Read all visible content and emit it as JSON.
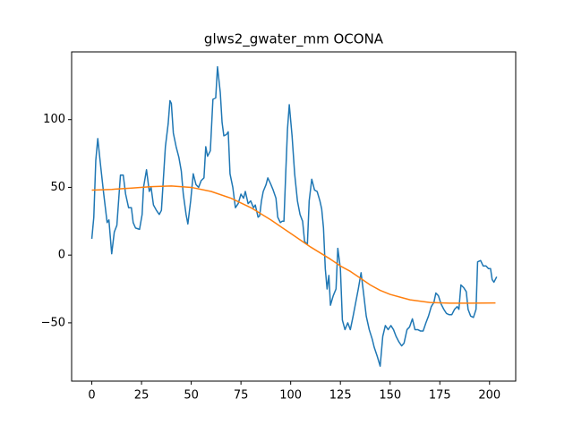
{
  "chart_data": {
    "type": "line",
    "title": "glws2_gwater_mm OCONA",
    "xlim": [
      -10.15,
      213.15
    ],
    "xticks": [
      0,
      25,
      50,
      75,
      100,
      125,
      150,
      175,
      200
    ],
    "ylim": [
      -93,
      150
    ],
    "yticks": [
      {
        "value": -50,
        "label": "−50"
      },
      0,
      50,
      100
    ],
    "series": [
      {
        "color": "#1f77b4",
        "x": [
          0,
          1,
          2,
          3,
          4.5,
          6,
          7.7,
          8.6,
          10,
          11.3,
          12.6,
          14.4,
          15.8,
          17,
          18.5,
          19.9,
          20.8,
          22,
          24,
          25.3,
          26,
          27.5,
          28.9,
          29.8,
          31,
          32.5,
          33.9,
          35,
          37,
          38.4,
          39.3,
          40,
          41,
          42.4,
          43.8,
          45,
          46,
          47.4,
          48.3,
          49.7,
          51,
          52.4,
          53.7,
          55,
          56.4,
          57.3,
          58.2,
          59.6,
          60.9,
          62.3,
          63.2,
          64.6,
          65.5,
          66.4,
          67.7,
          68.6,
          69.5,
          70.9,
          72.2,
          73.6,
          75,
          76.3,
          77.2,
          78.6,
          79.9,
          81.3,
          82.2,
          83.6,
          84.4,
          85.3,
          86.2,
          87.6,
          88.5,
          89.8,
          91.2,
          92.6,
          93.5,
          94.8,
          95.7,
          96.6,
          97.5,
          98.4,
          99.3,
          100.7,
          102,
          103.4,
          104.7,
          106,
          107,
          108.4,
          109.3,
          110.6,
          112,
          113.3,
          114.7,
          115.6,
          116.5,
          117.4,
          118.3,
          119.2,
          120,
          121.4,
          122.8,
          123.7,
          125,
          126,
          127.3,
          128.7,
          130,
          131.4,
          132.7,
          134,
          135.4,
          136.8,
          138,
          139.5,
          141,
          142,
          143.6,
          145,
          146.3,
          147.6,
          149,
          150.4,
          151.7,
          153,
          154.4,
          155.8,
          157,
          158.5,
          159.8,
          161.2,
          162.5,
          163.9,
          165.2,
          166.6,
          168,
          169.3,
          170.7,
          172,
          173,
          174.3,
          175.6,
          177,
          178.3,
          179.7,
          181,
          182.4,
          183.7,
          184.6,
          185.6,
          187,
          188.3,
          189.2,
          190.5,
          191.9,
          193.2,
          194,
          195.5,
          196.8,
          198.2,
          199.5,
          200.5,
          201.3,
          202.2,
          203.6
        ],
        "values": [
          12,
          28,
          70,
          86,
          65,
          45,
          24,
          26,
          1,
          17,
          22,
          59,
          59,
          45,
          35,
          35,
          24,
          20,
          19,
          30,
          50,
          63,
          47,
          50,
          37,
          33,
          30,
          33,
          80,
          97,
          114,
          112,
          90,
          80,
          72,
          62,
          45,
          30,
          23,
          40,
          60,
          52,
          50,
          55,
          57,
          80,
          73,
          77,
          115,
          116,
          139,
          120,
          98,
          88,
          89,
          91,
          60,
          50,
          35,
          38,
          45,
          42,
          47,
          38,
          40,
          35,
          37,
          28,
          29,
          40,
          47,
          52,
          57,
          53,
          48,
          42,
          28,
          24,
          25,
          25,
          60,
          93,
          111,
          88,
          60,
          40,
          30,
          25,
          10,
          8,
          40,
          56,
          48,
          47,
          40,
          34,
          20,
          -10,
          -25,
          -15,
          -37,
          -30,
          -25,
          5,
          -10,
          -48,
          -55,
          -50,
          -55,
          -45,
          -35,
          -25,
          -13,
          -30,
          -45,
          -55,
          -62,
          -68,
          -75,
          -82,
          -60,
          -52,
          -55,
          -52,
          -55,
          -60,
          -64,
          -67,
          -65,
          -55,
          -53,
          -47,
          -55,
          -55,
          -56,
          -56,
          -50,
          -45,
          -38,
          -35,
          -28,
          -30,
          -36,
          -40,
          -43,
          -44,
          -44,
          -40,
          -38,
          -40,
          -22,
          -24,
          -27,
          -40,
          -45,
          -46,
          -40,
          -5,
          -4,
          -8,
          -8,
          -10,
          -10,
          -18,
          -20,
          -16
        ]
      },
      {
        "color": "#ff7f0e",
        "x": [
          0,
          10,
          20,
          30,
          40,
          50,
          60,
          70,
          80,
          90,
          100,
          110,
          120,
          125,
          130,
          135,
          140,
          145,
          150,
          155,
          160,
          170,
          180,
          190,
          203
        ],
        "values": [
          48,
          48.5,
          49.5,
          50.5,
          51,
          50,
          47,
          42,
          35,
          26,
          16,
          6,
          -3,
          -8,
          -12,
          -17,
          -22,
          -26,
          -29,
          -31,
          -33,
          -35,
          -35.5,
          -35.5,
          -35.3
        ]
      }
    ]
  }
}
